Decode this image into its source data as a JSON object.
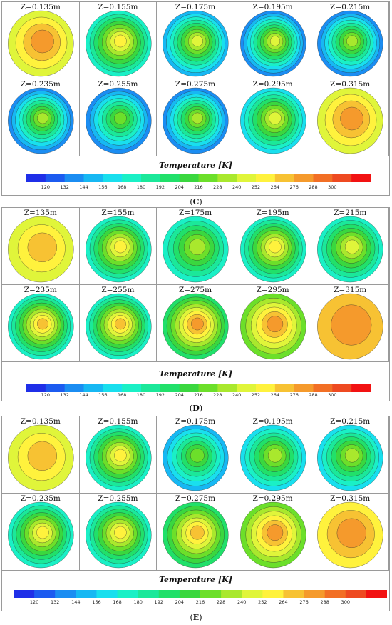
{
  "legend_title": "Temperature [K]",
  "colorbar": {
    "ticks": [
      "120",
      "132",
      "144",
      "156",
      "168",
      "180",
      "192",
      "204",
      "216",
      "228",
      "240",
      "252",
      "264",
      "276",
      "288",
      "300"
    ],
    "colors": [
      "#1f2fe8",
      "#1c5bf0",
      "#1b8df2",
      "#17b8f3",
      "#19dfee",
      "#1af0c6",
      "#1be89a",
      "#21e06a",
      "#3ad73f",
      "#6cdf2a",
      "#a9e82d",
      "#e0f53a",
      "#fff23d",
      "#f7c233",
      "#f59a2c",
      "#f26f25",
      "#ee4a21",
      "#f21212"
    ]
  },
  "panels": [
    {
      "id": "C",
      "caption": "C",
      "labels": [
        "Z=0.135m",
        "Z=0.155m",
        "Z=0.175m",
        "Z=0.195m",
        "Z=0.215m",
        "Z=0.235m",
        "Z=0.255m",
        "Z=0.275m",
        "Z=0.295m",
        "Z=0.315m"
      ],
      "levels": [
        [
          276,
          240
        ],
        [
          252,
          168
        ],
        [
          240,
          144
        ],
        [
          240,
          132
        ],
        [
          228,
          132
        ],
        [
          228,
          132
        ],
        [
          216,
          132
        ],
        [
          228,
          132
        ],
        [
          240,
          156
        ],
        [
          276,
          240
        ]
      ]
    },
    {
      "id": "D",
      "caption": "D",
      "labels": [
        "Z=135m",
        "Z=155m",
        "Z=175m",
        "Z=195m",
        "Z=215m",
        "Z=235m",
        "Z=255m",
        "Z=275m",
        "Z=295m",
        "Z=315m"
      ],
      "levels": [
        [
          264,
          240
        ],
        [
          252,
          168
        ],
        [
          228,
          168
        ],
        [
          252,
          168
        ],
        [
          240,
          168
        ],
        [
          264,
          168
        ],
        [
          264,
          168
        ],
        [
          276,
          192
        ],
        [
          276,
          216
        ],
        [
          276,
          264
        ]
      ]
    },
    {
      "id": "E",
      "caption": "E",
      "labels": [
        "Z=0.135m",
        "Z=0.155m",
        "Z=0.175m",
        "Z=0.195m",
        "Z=0.215m",
        "Z=0.235m",
        "Z=0.255m",
        "Z=0.275m",
        "Z=0.295m",
        "Z=0.315m"
      ],
      "levels": [
        [
          264,
          240
        ],
        [
          252,
          168
        ],
        [
          216,
          144
        ],
        [
          228,
          156
        ],
        [
          228,
          156
        ],
        [
          252,
          168
        ],
        [
          252,
          168
        ],
        [
          264,
          192
        ],
        [
          276,
          216
        ],
        [
          276,
          252
        ]
      ]
    }
  ]
}
